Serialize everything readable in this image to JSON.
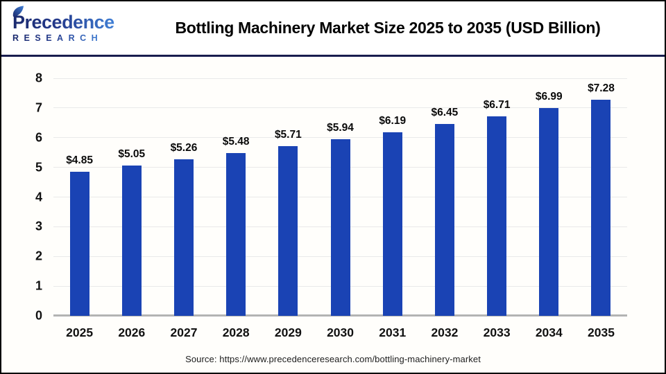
{
  "header": {
    "logo_line1": "Precedence",
    "logo_line2": "RESEARCH",
    "title": "Bottling Machinery Market Size 2025 to 2035 (USD Billion)"
  },
  "chart_data": {
    "type": "bar",
    "title": "Bottling Machinery Market Size 2025 to 2035 (USD Billion)",
    "categories": [
      "2025",
      "2026",
      "2027",
      "2028",
      "2029",
      "2030",
      "2031",
      "2032",
      "2033",
      "2034",
      "2035"
    ],
    "values": [
      4.85,
      5.05,
      5.26,
      5.48,
      5.71,
      5.94,
      6.19,
      6.45,
      6.71,
      6.99,
      7.28
    ],
    "value_labels": [
      "$4.85",
      "$5.05",
      "$5.26",
      "$5.48",
      "$5.71",
      "$5.94",
      "$6.19",
      "$6.45",
      "$6.71",
      "$6.99",
      "$7.28"
    ],
    "xlabel": "",
    "ylabel": "",
    "ylim": [
      0,
      8
    ],
    "yticks": [
      0,
      1,
      2,
      3,
      4,
      5,
      6,
      7,
      8
    ],
    "grid": true,
    "legend_position": "none",
    "bar_color": "#1a43b4"
  },
  "footer": {
    "source": "Source: https://www.precedenceresearch.com/bottling-machinery-market"
  },
  "colors": {
    "bar": "#1a43b4",
    "divider": "#181c4e",
    "gridline": "#e9e9e9",
    "axis_line": "#b3b3b3",
    "logo_navy": "#1b2a6e",
    "logo_blue": "#3f7fd6",
    "border": "#000000"
  }
}
